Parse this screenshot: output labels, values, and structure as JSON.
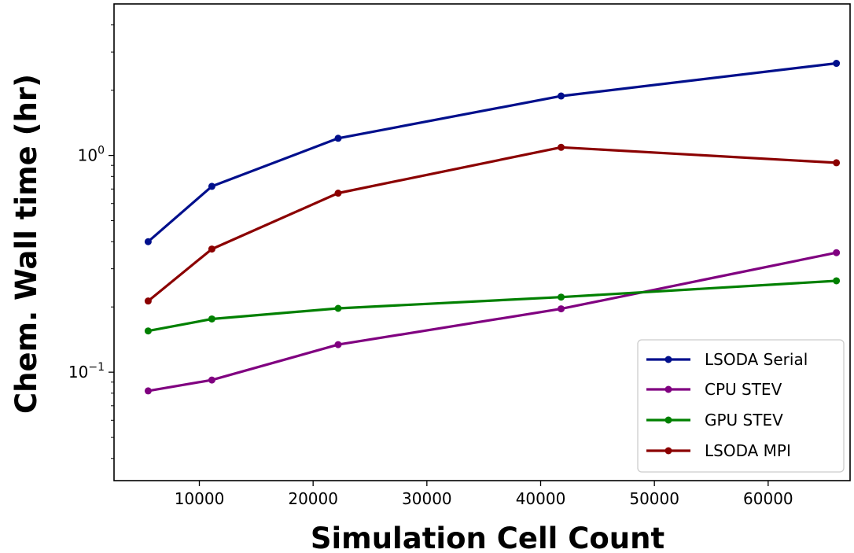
{
  "chart_data": {
    "type": "line",
    "xlabel": "Simulation Cell Count",
    "ylabel": "Chem. Wall time (hr)",
    "xlim": [
      2500,
      67200
    ],
    "ylim": [
      0.0316,
      5.0
    ],
    "y_scale": "log",
    "grid": false,
    "legend_position": "lower-right",
    "x_ticks": [
      {
        "value": 10000,
        "label": "10000"
      },
      {
        "value": 20000,
        "label": "20000"
      },
      {
        "value": 30000,
        "label": "30000"
      },
      {
        "value": 40000,
        "label": "40000"
      },
      {
        "value": 50000,
        "label": "50000"
      },
      {
        "value": 60000,
        "label": "60000"
      }
    ],
    "y_major_ticks": [
      {
        "value": 0.1,
        "base": "10",
        "exp": "−1"
      },
      {
        "value": 1,
        "base": "10",
        "exp": "0"
      }
    ],
    "y_minor_ticks": [
      0.04,
      0.05,
      0.06,
      0.07,
      0.08,
      0.09,
      0.2,
      0.3,
      0.4,
      0.5,
      0.6,
      0.7,
      0.8,
      0.9,
      2,
      3,
      4
    ],
    "x": [
      5500,
      11100,
      22200,
      41800,
      66000
    ],
    "series": [
      {
        "name": "LSODA Serial",
        "color": "#000f8c",
        "values": [
          0.4,
          0.72,
          1.2,
          1.88,
          2.66
        ]
      },
      {
        "name": "CPU STEV",
        "color": "#800080",
        "values": [
          0.082,
          0.092,
          0.134,
          0.196,
          0.356
        ]
      },
      {
        "name": "GPU STEV",
        "color": "#008000",
        "values": [
          0.155,
          0.176,
          0.197,
          0.222,
          0.264
        ]
      },
      {
        "name": "LSODA MPI",
        "color": "#8b0000",
        "values": [
          0.213,
          0.37,
          0.67,
          1.09,
          0.925
        ]
      }
    ]
  }
}
